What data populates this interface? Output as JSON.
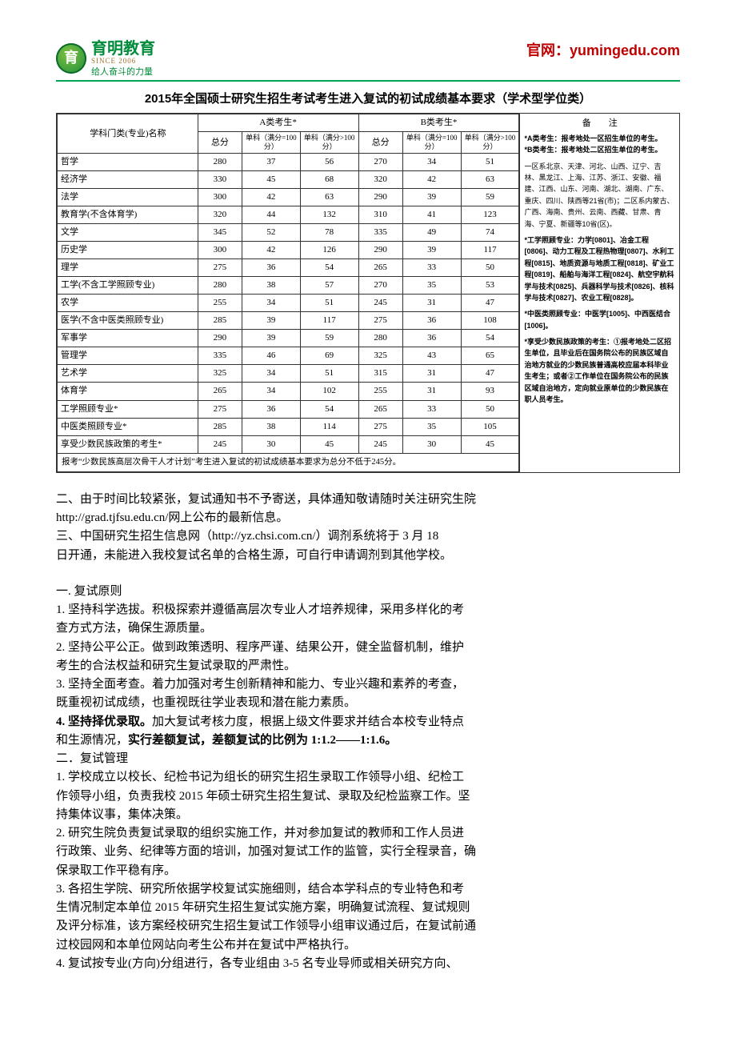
{
  "header": {
    "logo_main": "育明教育",
    "logo_since": "SINCE 2006",
    "logo_sub": "给人奋斗的力量",
    "site_label": "官网：yumingedu.com"
  },
  "table": {
    "title": "2015年全国硕士研究生招生考试考生进入复试的初试成绩基本要求（学术型学位类）",
    "col_subject": "学科门类(专业)名称",
    "group_a": "A类考生*",
    "group_b": "B类考生*",
    "col_total": "总分",
    "col_s100": "单科（满分=100分）",
    "col_s_gt100": "单科（满分>100分）",
    "col_notes": "备　　注",
    "rows": [
      {
        "subject": "哲学",
        "a": [
          280,
          37,
          56
        ],
        "b": [
          270,
          34,
          51
        ]
      },
      {
        "subject": "经济学",
        "a": [
          330,
          45,
          68
        ],
        "b": [
          320,
          42,
          63
        ]
      },
      {
        "subject": "法学",
        "a": [
          300,
          42,
          63
        ],
        "b": [
          290,
          39,
          59
        ]
      },
      {
        "subject": "教育学(不含体育学)",
        "a": [
          320,
          44,
          132
        ],
        "b": [
          310,
          41,
          123
        ]
      },
      {
        "subject": "文学",
        "a": [
          345,
          52,
          78
        ],
        "b": [
          335,
          49,
          74
        ]
      },
      {
        "subject": "历史学",
        "a": [
          300,
          42,
          126
        ],
        "b": [
          290,
          39,
          117
        ]
      },
      {
        "subject": "理学",
        "a": [
          275,
          36,
          54
        ],
        "b": [
          265,
          33,
          50
        ]
      },
      {
        "subject": "工学(不含工学照顾专业)",
        "a": [
          280,
          38,
          57
        ],
        "b": [
          270,
          35,
          53
        ]
      },
      {
        "subject": "农学",
        "a": [
          255,
          34,
          51
        ],
        "b": [
          245,
          31,
          47
        ]
      },
      {
        "subject": "医学(不含中医类照顾专业)",
        "a": [
          285,
          39,
          117
        ],
        "b": [
          275,
          36,
          108
        ]
      },
      {
        "subject": "军事学",
        "a": [
          290,
          39,
          59
        ],
        "b": [
          280,
          36,
          54
        ]
      },
      {
        "subject": "管理学",
        "a": [
          335,
          46,
          69
        ],
        "b": [
          325,
          43,
          65
        ]
      },
      {
        "subject": "艺术学",
        "a": [
          325,
          34,
          51
        ],
        "b": [
          315,
          31,
          47
        ]
      },
      {
        "subject": "体育学",
        "a": [
          265,
          34,
          102
        ],
        "b": [
          255,
          31,
          93
        ]
      },
      {
        "subject": "工学照顾专业*",
        "a": [
          275,
          36,
          54
        ],
        "b": [
          265,
          33,
          50
        ]
      },
      {
        "subject": "中医类照顾专业*",
        "a": [
          285,
          38,
          114
        ],
        "b": [
          275,
          35,
          105
        ]
      },
      {
        "subject": "享受少数民族政策的考生*",
        "a": [
          245,
          30,
          45
        ],
        "b": [
          245,
          30,
          45
        ]
      }
    ],
    "footnote": "报考“少数民族高层次骨干人才计划”考生进入复试的初试成绩基本要求为总分不低于245分。",
    "notes_ab": "*A类考生：报考地处一区招生单位的考生。\n*B类考生：报考地处二区招生单位的考生。",
    "notes_region": "一区系北京、天津、河北、山西、辽宁、吉林、黑龙江、上海、江苏、浙江、安徽、福建、江西、山东、河南、湖北、湖南、广东、重庆、四川、陕西等21省(市)；二区系内蒙古、广西、海南、贵州、云南、西藏、甘肃、青海、宁夏、新疆等10省(区)。",
    "notes_eng": "*工学照顾专业：力学[0801]、冶金工程[0806]、动力工程及工程热物理[0807]、水利工程[0815]、地质资源与地质工程[0818]、矿业工程[0819]、船舶与海洋工程[0824]、航空宇航科学与技术[0825]、兵器科学与技术[0826]、核科学与技术[0827]、农业工程[0828]。",
    "notes_tcm": "*中医类照顾专业：中医学[1005]、中西医结合[1006]。",
    "notes_minority": "*享受少数民族政策的考生：①报考地处二区招生单位，且毕业后在国务院公布的民族区域自治地方就业的少数民族普通高校应届本科毕业生考生；或者②工作单位在国务院公布的民族区域自治地方，定向就业原单位的少数民族在职人员考生。"
  },
  "paras": {
    "p2a": "二、由于时间比较紧张，复试通知书不予寄送，具体通知敬请随时关注研究生院",
    "p2b": "http://grad.tjfsu.edu.cn/网上公布的最新信息。",
    "p3a": "三、中国研究生招生信息网（http://yz.chsi.com.cn/）调剂系统将于 3 月 18",
    "p3b": "日开通，未能进入我校复试名单的合格生源，可自行申请调剂到其他学校。",
    "h1": "一. 复试原则",
    "h1_1a": "1. 坚持科学选拔。积极探索并遵循高层次专业人才培养规律，采用多样化的考",
    "h1_1b": "查方式方法，确保生源质量。",
    "h1_2a": "2. 坚持公平公正。做到政策透明、程序严谨、结果公开，健全监督机制，维护",
    "h1_2b": "考生的合法权益和研究生复试录取的严肃性。",
    "h1_3a": "3. 坚持全面考查。着力加强对考生创新精神和能力、专业兴趣和素养的考查，",
    "h1_3b": "既重视初试成绩，也重视既往学业表现和潜在能力素质。",
    "h1_4a": "4. 坚持择优录取。",
    "h1_4b": "加大复试考核力度，根据上级文件要求并结合本校专业特点",
    "h1_4c": "和生源情况，",
    "h1_4d": "实行差额复试，差额复试的比例为 1:1.2——1:1.6。",
    "h2": "二．复试管理",
    "h2_1a": "1. 学校成立以校长、纪检书记为组长的研究生招生录取工作领导小组、纪检工",
    "h2_1b": "作领导小组，负责我校 2015 年硕士研究生招生复试、录取及纪检监察工作。坚",
    "h2_1c": "持集体议事，集体决策。",
    "h2_2a": "2. 研究生院负责复试录取的组织实施工作，并对参加复试的教师和工作人员进",
    "h2_2b": "行政策、业务、纪律等方面的培训，加强对复试工作的监管，实行全程录音，确",
    "h2_2c": "保录取工作平稳有序。",
    "h2_3a": "3. 各招生学院、研究所依据学校复试实施细则，结合本学科点的专业特色和考",
    "h2_3b": "生情况制定本单位 2015 年研究生招生复试实施方案，明确复试流程、复试规则",
    "h2_3c": "及评分标准，该方案经校研究生招生复试工作领导小组审议通过后，在复试前通",
    "h2_3d": "过校园网和本单位网站向考生公布并在复试中严格执行。",
    "h2_4a": "4. 复试按专业(方向)分组进行，各专业组由 3-5 名专业导师或相关研究方向、"
  },
  "colors": {
    "accent_red": "#c00000",
    "accent_green": "#008c3a",
    "border": "#333333"
  }
}
